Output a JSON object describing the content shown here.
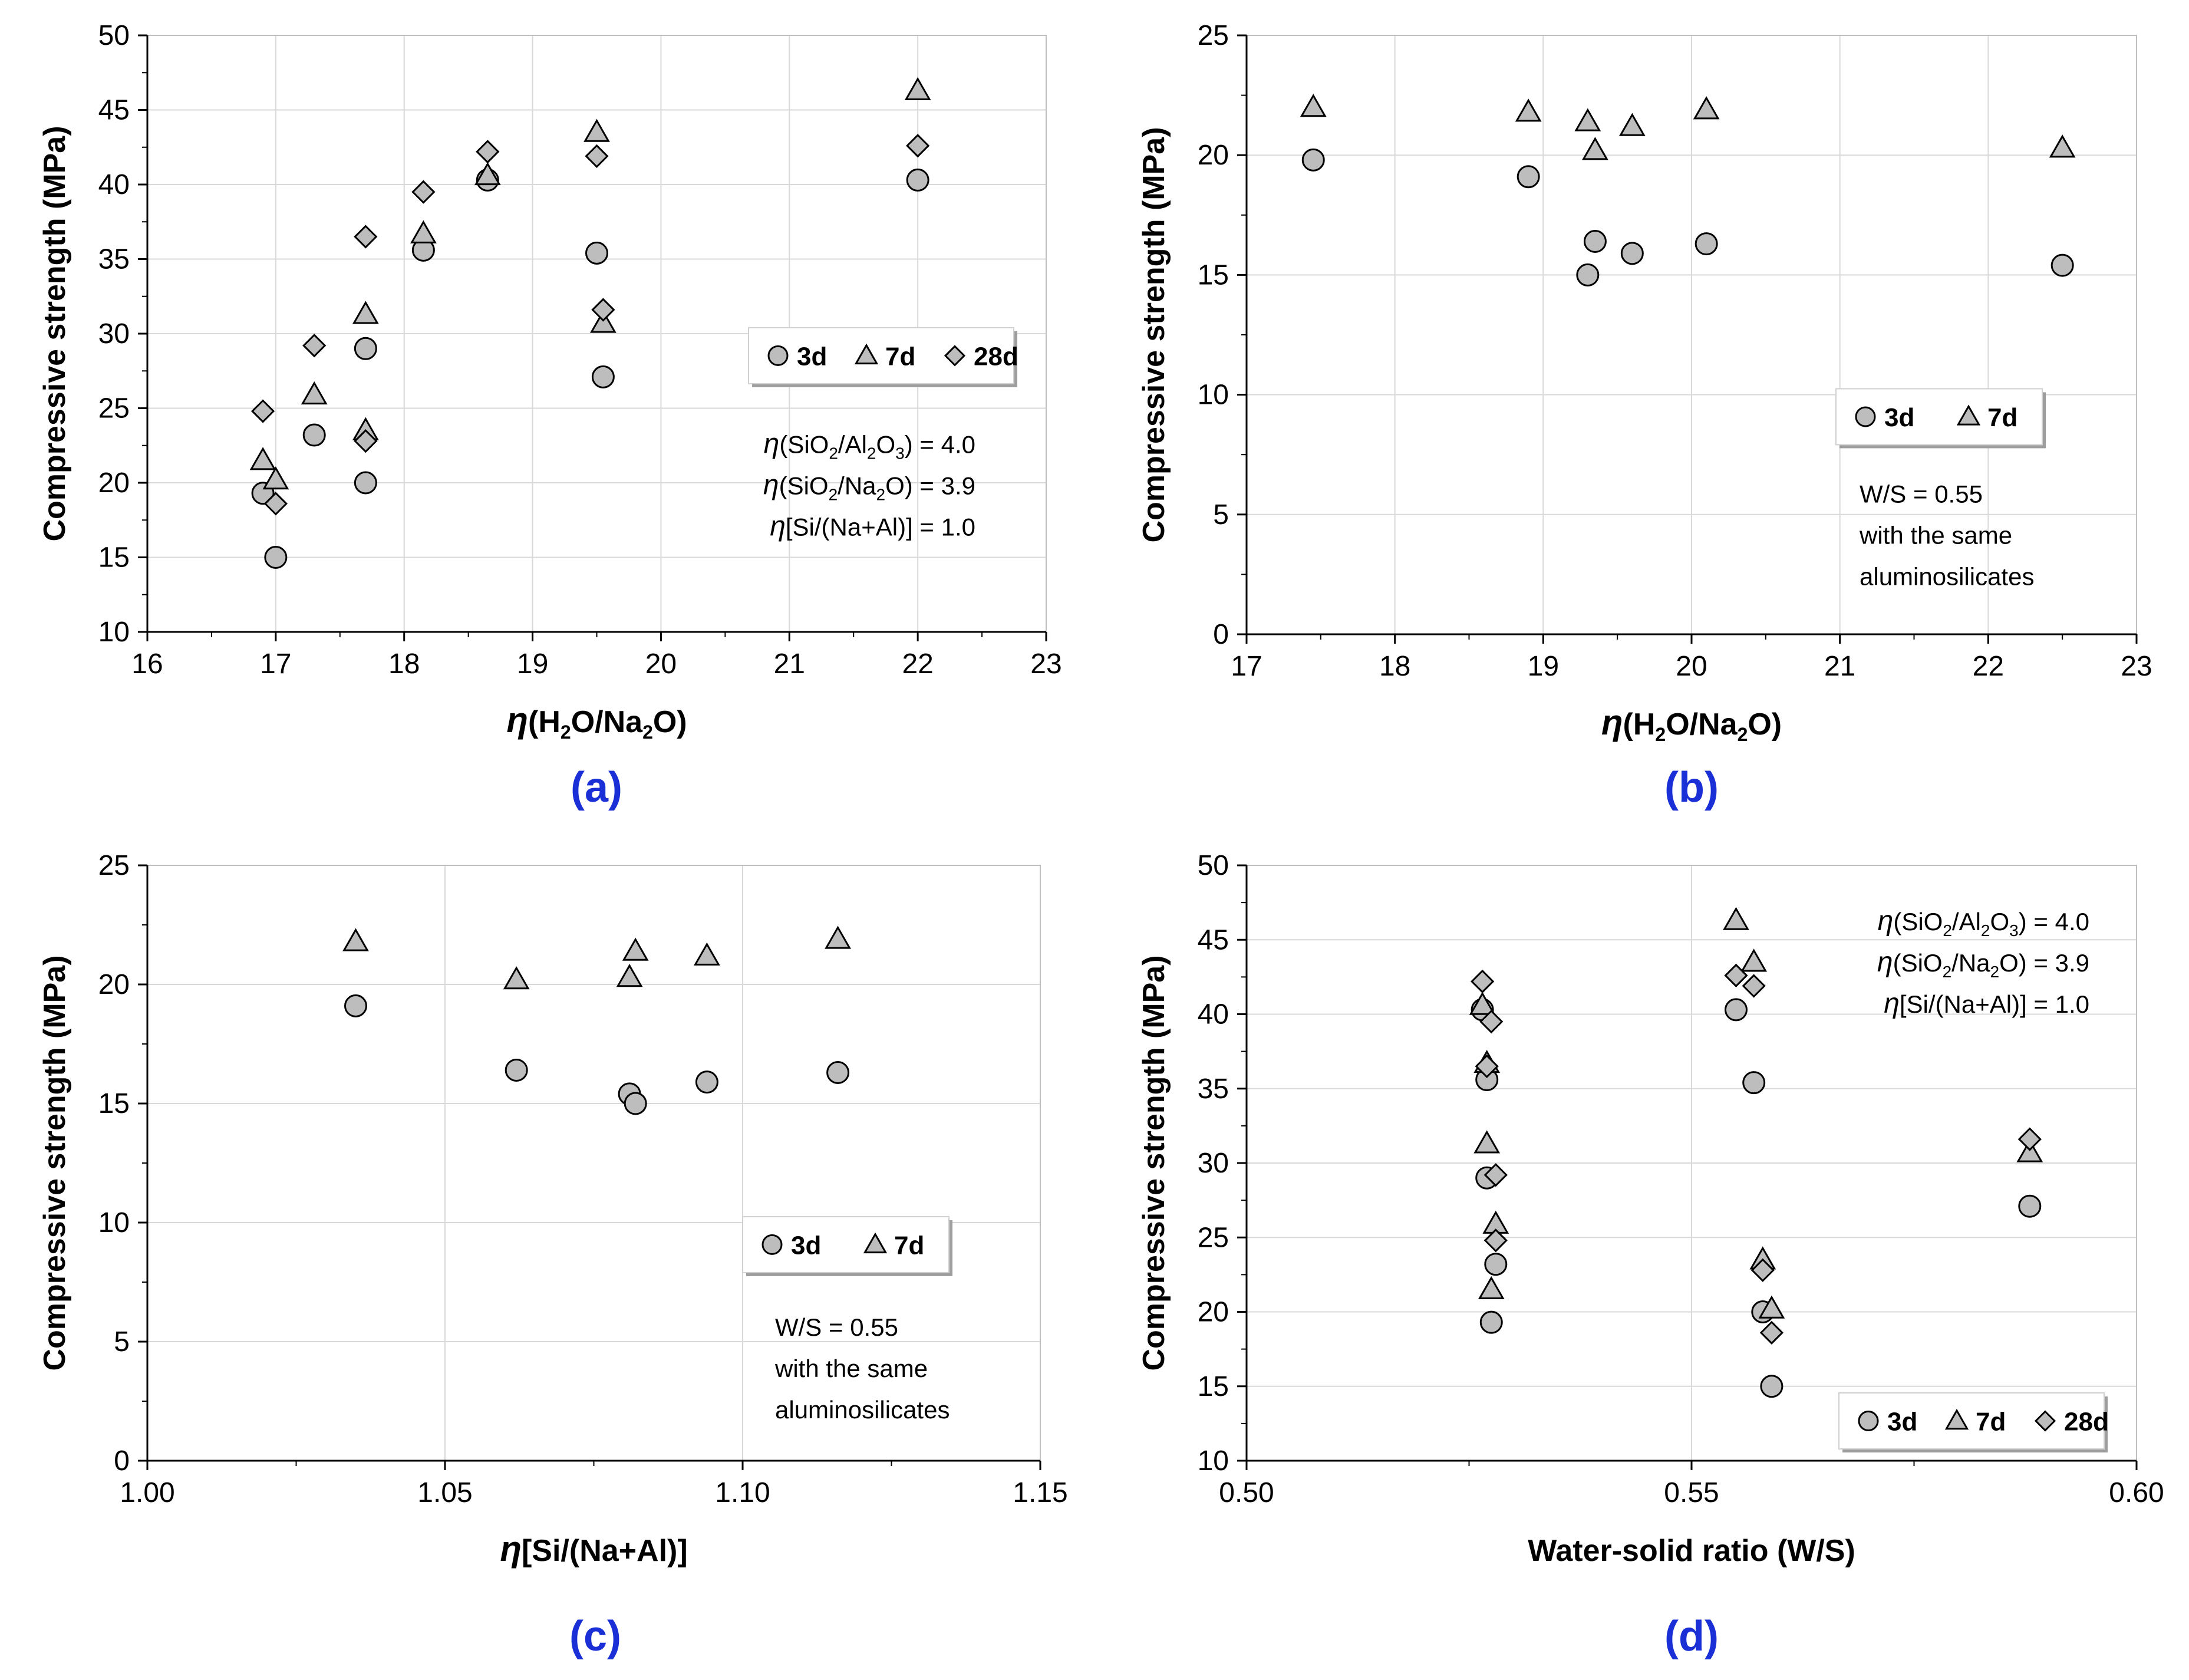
{
  "chart_data": [
    {
      "type": "scatter",
      "panel_label": "(a)",
      "xlabel": {
        "prefix": "η",
        "parts": [
          [
            "(H",
            false
          ],
          [
            "2",
            true
          ],
          [
            "O/Na",
            false
          ],
          [
            "2",
            true
          ],
          [
            "O)",
            false
          ]
        ]
      },
      "ylabel": "Compressive strength (MPa)",
      "xlim": [
        16,
        23
      ],
      "xticks": [
        16,
        17,
        18,
        19,
        20,
        21,
        22,
        23
      ],
      "xdec": 0,
      "ylim": [
        10,
        50
      ],
      "yticks": [
        10,
        15,
        20,
        25,
        30,
        35,
        40,
        45,
        50
      ],
      "ydec": 0,
      "grid": true,
      "legend": {
        "position": "right-middle",
        "entries": [
          {
            "label": "3d",
            "marker": "circle"
          },
          {
            "label": "7d",
            "marker": "triangle"
          },
          {
            "label": "28d",
            "marker": "diamond"
          }
        ]
      },
      "notes_position": "right-middle",
      "notes": [
        [
          [
            "η",
            false
          ],
          [
            "(SiO",
            false
          ],
          [
            "2",
            true
          ],
          [
            "/Al",
            false
          ],
          [
            "2",
            true
          ],
          [
            "O",
            false
          ],
          [
            "3",
            true
          ],
          [
            ") = 4.0",
            false
          ]
        ],
        [
          [
            "η",
            false
          ],
          [
            "(SiO",
            false
          ],
          [
            "2",
            true
          ],
          [
            "/Na",
            false
          ],
          [
            "2",
            true
          ],
          [
            "O) = 3.9",
            false
          ]
        ],
        [
          [
            "η",
            false
          ],
          [
            "[Si/(Na+Al)] = 1.0",
            false
          ]
        ]
      ],
      "series": [
        {
          "name": "3d",
          "marker": "circle",
          "points": [
            [
              16.9,
              19.3
            ],
            [
              17.0,
              15.0
            ],
            [
              17.3,
              23.2
            ],
            [
              17.7,
              29.0
            ],
            [
              17.7,
              20.0
            ],
            [
              18.15,
              35.6
            ],
            [
              18.65,
              40.3
            ],
            [
              19.5,
              35.4
            ],
            [
              19.55,
              27.1
            ],
            [
              22.0,
              40.3
            ]
          ]
        },
        {
          "name": "7d",
          "marker": "triangle",
          "points": [
            [
              16.9,
              21.5
            ],
            [
              17.0,
              20.2
            ],
            [
              17.3,
              25.9
            ],
            [
              17.7,
              31.3
            ],
            [
              17.7,
              23.5
            ],
            [
              18.15,
              36.7
            ],
            [
              18.65,
              40.6
            ],
            [
              19.5,
              43.5
            ],
            [
              19.55,
              30.7
            ],
            [
              22.0,
              46.3
            ]
          ]
        },
        {
          "name": "28d",
          "marker": "diamond",
          "points": [
            [
              16.9,
              24.8
            ],
            [
              17.0,
              18.6
            ],
            [
              17.3,
              29.2
            ],
            [
              17.7,
              36.5
            ],
            [
              17.7,
              22.8
            ],
            [
              18.15,
              39.5
            ],
            [
              18.65,
              42.2
            ],
            [
              19.5,
              41.9
            ],
            [
              19.55,
              31.6
            ],
            [
              22.0,
              42.6
            ]
          ]
        }
      ]
    },
    {
      "type": "scatter",
      "panel_label": "(b)",
      "xlabel": {
        "prefix": "η",
        "parts": [
          [
            "(H",
            false
          ],
          [
            "2",
            true
          ],
          [
            "O/Na",
            false
          ],
          [
            "2",
            true
          ],
          [
            "O)",
            false
          ]
        ]
      },
      "ylabel": "Compressive strength (MPa)",
      "xlim": [
        17,
        23
      ],
      "xticks": [
        17,
        18,
        19,
        20,
        21,
        22,
        23
      ],
      "xdec": 0,
      "ylim": [
        0,
        25
      ],
      "yticks": [
        0,
        5,
        10,
        15,
        20,
        25
      ],
      "ydec": 0,
      "grid": true,
      "legend": {
        "position": "right-middle",
        "entries": [
          {
            "label": "3d",
            "marker": "circle"
          },
          {
            "label": "7d",
            "marker": "triangle"
          }
        ]
      },
      "notes_position": "right-lower",
      "notes": [
        [
          [
            "W/S = 0.55",
            false
          ]
        ],
        [
          [
            "with the same",
            false
          ]
        ],
        [
          [
            "aluminosilicates",
            false
          ]
        ]
      ],
      "series": [
        {
          "name": "3d",
          "marker": "circle",
          "points": [
            [
              17.45,
              19.8
            ],
            [
              18.9,
              19.1
            ],
            [
              19.3,
              15.0
            ],
            [
              19.35,
              16.4
            ],
            [
              19.6,
              15.9
            ],
            [
              20.1,
              16.3
            ],
            [
              22.5,
              15.4
            ]
          ]
        },
        {
          "name": "7d",
          "marker": "triangle",
          "points": [
            [
              17.45,
              22.0
            ],
            [
              18.9,
              21.8
            ],
            [
              19.3,
              21.4
            ],
            [
              19.35,
              20.2
            ],
            [
              19.6,
              21.2
            ],
            [
              20.1,
              21.9
            ],
            [
              22.5,
              20.3
            ]
          ]
        }
      ]
    },
    {
      "type": "scatter",
      "panel_label": "(c)",
      "xlabel": {
        "prefix": "η",
        "parts": [
          [
            "[Si/(Na+Al)]",
            false
          ]
        ]
      },
      "ylabel": "Compressive strength (MPa)",
      "xlim": [
        1.0,
        1.15
      ],
      "xticks": [
        1.0,
        1.05,
        1.1,
        1.15
      ],
      "xdec": 2,
      "ylim": [
        0,
        25
      ],
      "yticks": [
        0,
        5,
        10,
        15,
        20,
        25
      ],
      "ydec": 0,
      "grid": true,
      "legend": {
        "position": "right-middle",
        "entries": [
          {
            "label": "3d",
            "marker": "circle"
          },
          {
            "label": "7d",
            "marker": "triangle"
          }
        ]
      },
      "notes_position": "right-lower",
      "notes": [
        [
          [
            "W/S = 0.55",
            false
          ]
        ],
        [
          [
            "with the same",
            false
          ]
        ],
        [
          [
            "aluminosilicates",
            false
          ]
        ]
      ],
      "series": [
        {
          "name": "3d",
          "marker": "circle",
          "points": [
            [
              1.035,
              19.1
            ],
            [
              1.062,
              16.4
            ],
            [
              1.081,
              15.4
            ],
            [
              1.082,
              15.0
            ],
            [
              1.094,
              15.9
            ],
            [
              1.116,
              16.3
            ]
          ]
        },
        {
          "name": "7d",
          "marker": "triangle",
          "points": [
            [
              1.035,
              21.8
            ],
            [
              1.062,
              20.2
            ],
            [
              1.081,
              20.3
            ],
            [
              1.082,
              21.4
            ],
            [
              1.094,
              21.2
            ],
            [
              1.116,
              21.9
            ]
          ]
        }
      ]
    },
    {
      "type": "scatter",
      "panel_label": "(d)",
      "xlabel": {
        "prefix": "",
        "parts": [
          [
            "Water-solid ratio (W/S)",
            false
          ]
        ]
      },
      "ylabel": "Compressive strength (MPa)",
      "xlim": [
        0.5,
        0.6
      ],
      "xticks": [
        0.5,
        0.55,
        0.6
      ],
      "xdec": 2,
      "ylim": [
        10,
        50
      ],
      "yticks": [
        10,
        15,
        20,
        25,
        30,
        35,
        40,
        45,
        50
      ],
      "ydec": 0,
      "grid": true,
      "legend": {
        "position": "bottom-right",
        "entries": [
          {
            "label": "3d",
            "marker": "circle"
          },
          {
            "label": "7d",
            "marker": "triangle"
          },
          {
            "label": "28d",
            "marker": "diamond"
          }
        ]
      },
      "notes_position": "top-right",
      "notes": [
        [
          [
            "η",
            false
          ],
          [
            "(SiO",
            false
          ],
          [
            "2",
            true
          ],
          [
            "/Al",
            false
          ],
          [
            "2",
            true
          ],
          [
            "O",
            false
          ],
          [
            "3",
            true
          ],
          [
            ") = 4.0",
            false
          ]
        ],
        [
          [
            "η",
            false
          ],
          [
            "(SiO",
            false
          ],
          [
            "2",
            true
          ],
          [
            "/Na",
            false
          ],
          [
            "2",
            true
          ],
          [
            "O) = 3.9",
            false
          ]
        ],
        [
          [
            "η",
            false
          ],
          [
            "[Si/(Na+Al)] = 1.0",
            false
          ]
        ]
      ],
      "series": [
        {
          "name": "3d",
          "marker": "circle",
          "points": [
            [
              0.5275,
              19.3
            ],
            [
              0.528,
              23.2
            ],
            [
              0.527,
              29.0
            ],
            [
              0.527,
              35.6
            ],
            [
              0.5265,
              40.3
            ],
            [
              0.555,
              40.3
            ],
            [
              0.557,
              35.4
            ],
            [
              0.558,
              20.0
            ],
            [
              0.559,
              15.0
            ],
            [
              0.588,
              27.1
            ]
          ]
        },
        {
          "name": "7d",
          "marker": "triangle",
          "points": [
            [
              0.5275,
              21.5
            ],
            [
              0.528,
              25.9
            ],
            [
              0.527,
              31.3
            ],
            [
              0.527,
              36.7
            ],
            [
              0.5265,
              40.6
            ],
            [
              0.555,
              46.3
            ],
            [
              0.557,
              43.5
            ],
            [
              0.558,
              23.5
            ],
            [
              0.559,
              20.2
            ],
            [
              0.588,
              30.7
            ]
          ]
        },
        {
          "name": "28d",
          "marker": "diamond",
          "points": [
            [
              0.528,
              24.8
            ],
            [
              0.528,
              29.2
            ],
            [
              0.527,
              36.5
            ],
            [
              0.5275,
              39.5
            ],
            [
              0.5265,
              42.2
            ],
            [
              0.555,
              42.6
            ],
            [
              0.557,
              41.9
            ],
            [
              0.558,
              22.8
            ],
            [
              0.559,
              18.6
            ],
            [
              0.588,
              31.6
            ]
          ]
        }
      ]
    }
  ]
}
